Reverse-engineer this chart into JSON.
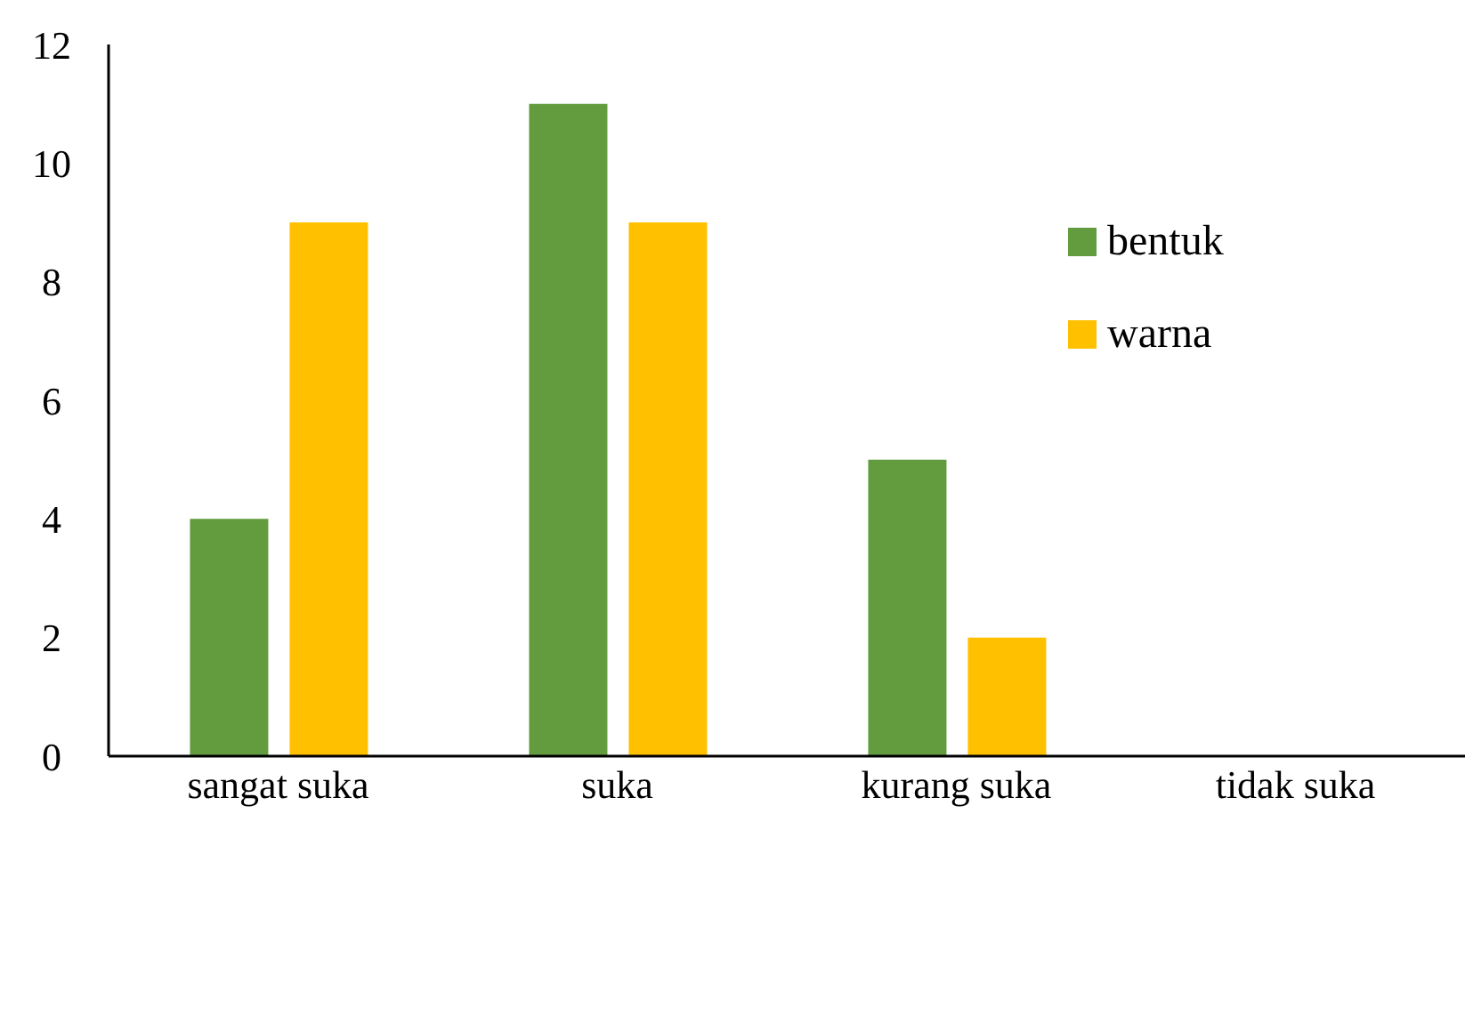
{
  "chart_data": {
    "type": "bar",
    "categories": [
      "sangat suka",
      "suka",
      "kurang suka",
      "tidak suka"
    ],
    "series": [
      {
        "name": "bentuk",
        "color": "#629c3f",
        "values": [
          4,
          11,
          5,
          0
        ]
      },
      {
        "name": "warna",
        "color": "#ffc000",
        "values": [
          9,
          9,
          2,
          0
        ]
      }
    ],
    "ylim": [
      0,
      12
    ],
    "yticks": [
      0,
      2,
      4,
      6,
      8,
      10,
      12
    ],
    "grid": false,
    "legend": "top right"
  }
}
